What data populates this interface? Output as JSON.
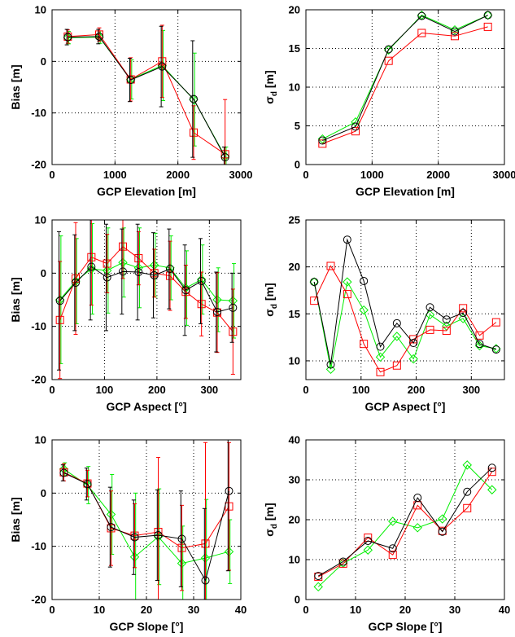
{
  "chart_data": [
    {
      "type": "line",
      "xlabel": "GCP Elevation [m]",
      "ylabel": "Bias [m]",
      "xlim": [
        0,
        3000
      ],
      "ylim": [
        -20,
        10
      ],
      "xticks": [
        0,
        1000,
        2000,
        3000
      ],
      "yticks": [
        -20,
        -10,
        0,
        10
      ],
      "grid": true,
      "x": [
        250,
        750,
        1250,
        1750,
        2250,
        2750
      ],
      "series": [
        {
          "color": "#000000",
          "marker": "circle",
          "values": [
            4.7,
            4.8,
            -3.6,
            -1.0,
            -7.3,
            -18.6
          ],
          "err": [
            1.5,
            1.4,
            4.2,
            7.8,
            11.3,
            2.0
          ]
        },
        {
          "color": "#ff0000",
          "marker": "square",
          "values": [
            4.8,
            5.2,
            -3.5,
            0.0,
            -13.8,
            -18.0
          ],
          "err": [
            1.3,
            1.3,
            4.2,
            7.0,
            5.2,
            10.6
          ]
        },
        {
          "color": "#00ee00",
          "marker": "diamond",
          "values": [
            4.6,
            4.7,
            -3.5,
            -0.8,
            -7.4,
            -18.4
          ],
          "err": [
            1.2,
            1.2,
            3.8,
            6.8,
            9.0,
            1.8
          ]
        }
      ]
    },
    {
      "type": "line",
      "xlabel": "GCP Elevation [m]",
      "ylabel_main": "σ",
      "ylabel_sub": "d",
      "ylabel_unit": " [m]",
      "xlim": [
        0,
        3000
      ],
      "ylim": [
        0,
        20
      ],
      "xticks": [
        0,
        1000,
        2000,
        3000
      ],
      "yticks": [
        0,
        5,
        10,
        15,
        20
      ],
      "grid": true,
      "x": [
        250,
        750,
        1250,
        1750,
        2250,
        2750
      ],
      "series": [
        {
          "color": "#000000",
          "marker": "circle",
          "values": [
            3.1,
            4.9,
            14.9,
            19.2,
            17.2,
            19.3
          ]
        },
        {
          "color": "#ff0000",
          "marker": "square",
          "values": [
            2.7,
            4.3,
            13.4,
            17.0,
            16.6,
            17.8
          ]
        },
        {
          "color": "#00ee00",
          "marker": "diamond",
          "values": [
            3.3,
            5.5,
            14.8,
            19.3,
            17.4,
            19.3
          ]
        }
      ]
    },
    {
      "type": "line",
      "xlabel": "GCP Aspect [°]",
      "ylabel": "Bias [m]",
      "xlim": [
        0,
        360
      ],
      "ylim": [
        -20,
        10
      ],
      "xticks": [
        0,
        100,
        200,
        300
      ],
      "yticks": [
        -20,
        -10,
        0,
        10
      ],
      "grid": true,
      "x": [
        15,
        45,
        75,
        105,
        135,
        165,
        195,
        225,
        255,
        285,
        315,
        345
      ],
      "series": [
        {
          "color": "#000000",
          "marker": "circle",
          "values": [
            -5.2,
            -1.8,
            1.2,
            -0.8,
            0.3,
            0.2,
            -0.4,
            0.8,
            -3.2,
            -1.5,
            -7.3,
            -6.5
          ],
          "err": [
            13.0,
            9.0,
            10.0,
            10.0,
            8.0,
            9.0,
            8.0,
            7.5,
            8.5,
            8.0,
            7.5,
            6.5
          ]
        },
        {
          "color": "#ff0000",
          "marker": "square",
          "values": [
            -8.8,
            -1.0,
            3.0,
            1.8,
            5.0,
            2.8,
            0.0,
            -0.5,
            -3.5,
            -5.8,
            -7.4,
            -11.0
          ],
          "err": [
            11.0,
            10.5,
            9.0,
            5.5,
            6.0,
            5.0,
            4.5,
            6.5,
            5.0,
            6.0,
            7.5,
            8.0
          ]
        },
        {
          "color": "#00ee00",
          "marker": "diamond",
          "values": [
            -5.0,
            -1.5,
            0.8,
            0.5,
            2.0,
            1.0,
            1.5,
            1.0,
            -2.8,
            -1.2,
            -5.0,
            -5.2
          ],
          "err": [
            12.0,
            8.0,
            8.5,
            8.0,
            6.5,
            7.5,
            6.0,
            6.0,
            7.0,
            6.5,
            6.0,
            7.0
          ]
        }
      ]
    },
    {
      "type": "line",
      "xlabel": "GCP Aspect [°]",
      "ylabel_main": "σ",
      "ylabel_sub": "d",
      "ylabel_unit": " [m]",
      "xlim": [
        0,
        360
      ],
      "ylim": [
        8,
        25
      ],
      "xticks": [
        0,
        100,
        200,
        300
      ],
      "yticks": [
        10,
        15,
        20,
        25
      ],
      "grid": true,
      "x": [
        15,
        45,
        75,
        105,
        135,
        165,
        195,
        225,
        255,
        285,
        315,
        345
      ],
      "series": [
        {
          "color": "#000000",
          "marker": "circle",
          "values": [
            18.4,
            9.6,
            22.9,
            18.5,
            11.5,
            14.0,
            11.9,
            15.7,
            14.4,
            15.1,
            11.8,
            11.2
          ]
        },
        {
          "color": "#ff0000",
          "marker": "square",
          "values": [
            16.4,
            20.1,
            17.1,
            11.8,
            8.8,
            9.5,
            12.3,
            13.3,
            13.2,
            15.6,
            12.7,
            14.1
          ]
        },
        {
          "color": "#00ee00",
          "marker": "diamond",
          "values": [
            18.4,
            9.1,
            18.4,
            15.4,
            10.4,
            12.6,
            10.2,
            14.9,
            13.7,
            14.5,
            11.6,
            11.3
          ]
        }
      ]
    },
    {
      "type": "line",
      "xlabel": "GCP Slope [°]",
      "ylabel": "Bias [m]",
      "xlim": [
        0,
        40
      ],
      "ylim": [
        -20,
        10
      ],
      "xticks": [
        0,
        10,
        20,
        30,
        40
      ],
      "yticks": [
        -20,
        -10,
        0,
        10
      ],
      "grid": true,
      "x": [
        2.5,
        7.5,
        12.5,
        17.5,
        22.5,
        27.5,
        32.5,
        37.5
      ],
      "series": [
        {
          "color": "#000000",
          "marker": "circle",
          "values": [
            3.8,
            1.7,
            -6.4,
            -8.3,
            -7.9,
            -8.6,
            -16.4,
            0.4
          ],
          "err": [
            1.5,
            3.0,
            7.5,
            7.0,
            8.5,
            9.0,
            13.5,
            15.0
          ]
        },
        {
          "color": "#ff0000",
          "marker": "square",
          "values": [
            3.9,
            1.8,
            -6.6,
            -8.0,
            -7.3,
            -10.3,
            -9.5,
            -2.5
          ],
          "err": [
            1.6,
            2.5,
            7.0,
            6.0,
            14.0,
            8.0,
            19.0,
            12.0
          ]
        },
        {
          "color": "#00ee00",
          "marker": "diamond",
          "values": [
            4.5,
            1.5,
            -4.0,
            -12.0,
            -8.2,
            -13.2,
            -12.2,
            -11.0
          ],
          "err": [
            1.2,
            3.5,
            7.5,
            12.0,
            9.0,
            7.0,
            11.0,
            6.0
          ]
        }
      ]
    },
    {
      "type": "line",
      "xlabel": "GCP Slope [°]",
      "ylabel_main": "σ",
      "ylabel_sub": "d",
      "ylabel_unit": " [m]",
      "xlim": [
        0,
        40
      ],
      "ylim": [
        0,
        40
      ],
      "xticks": [
        0,
        10,
        20,
        30,
        40
      ],
      "yticks": [
        0,
        10,
        20,
        30,
        40
      ],
      "grid": true,
      "x": [
        2.5,
        7.5,
        12.5,
        17.5,
        22.5,
        27.5,
        32.5,
        37.5
      ],
      "series": [
        {
          "color": "#000000",
          "marker": "circle",
          "values": [
            5.9,
            9.5,
            14.7,
            12.8,
            25.5,
            17.0,
            27.0,
            33.0
          ]
        },
        {
          "color": "#ff0000",
          "marker": "square",
          "values": [
            5.7,
            9.0,
            15.5,
            11.2,
            23.6,
            17.2,
            22.9,
            32.0
          ]
        },
        {
          "color": "#00ee00",
          "marker": "diamond",
          "values": [
            3.2,
            9.1,
            12.4,
            19.6,
            18.0,
            20.2,
            33.7,
            27.5
          ]
        }
      ]
    }
  ]
}
